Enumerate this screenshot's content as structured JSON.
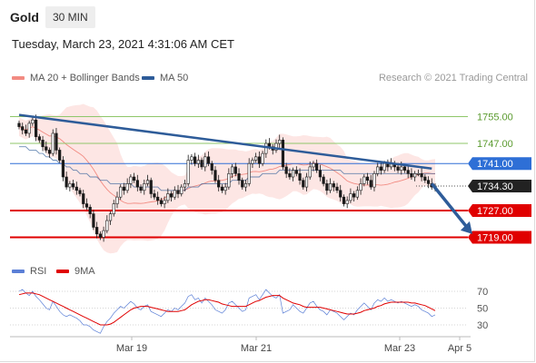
{
  "header": {
    "symbol": "Gold",
    "timeframe": "30 MIN"
  },
  "datetime": "Tuesday, March 23, 2021 4:31:06 AM CET",
  "legend": {
    "items": [
      {
        "label": "MA 20 + Bollinger Bands",
        "color": "#f28b82"
      },
      {
        "label": "MA 50",
        "color": "#2e5c99"
      }
    ],
    "credit": "Research © 2021 Trading Central"
  },
  "rsi_legend": {
    "items": [
      {
        "label": "RSI",
        "color": "#5b7fd6"
      },
      {
        "label": "9MA",
        "color": "#e00000"
      }
    ]
  },
  "colors": {
    "resistance": "#8fc76a",
    "support": "#e00000",
    "pivot": "#2e6fd6",
    "arrow": "#2e5c99",
    "candle": "#1a1a1a"
  },
  "chart_data": [
    {
      "type": "candlestick",
      "x_ticks": [
        "Mar 19",
        "Mar 21",
        "Mar 23",
        "Apr 5"
      ],
      "ylim": [
        1714,
        1760
      ],
      "levels": [
        {
          "label": "1755.00",
          "value": 1755,
          "kind": "resistance"
        },
        {
          "label": "1747.00",
          "value": 1747,
          "kind": "resistance"
        },
        {
          "label": "1741.00",
          "value": 1741,
          "kind": "pivot"
        },
        {
          "label": "1734.30",
          "value": 1734.3,
          "kind": "last"
        },
        {
          "label": "1727.00",
          "value": 1727,
          "kind": "support"
        },
        {
          "label": "1719.00",
          "value": 1719,
          "kind": "support"
        }
      ],
      "closes": [
        1752,
        1751,
        1750,
        1753,
        1754,
        1749,
        1748,
        1746,
        1745,
        1744,
        1750,
        1745,
        1742,
        1737,
        1734,
        1735,
        1734,
        1733,
        1732,
        1729,
        1728,
        1726,
        1722,
        1720,
        1719,
        1721,
        1724,
        1726,
        1729,
        1731,
        1734,
        1733,
        1735,
        1737,
        1736,
        1734,
        1733,
        1735,
        1736,
        1732,
        1731,
        1730,
        1729,
        1730,
        1732,
        1731,
        1733,
        1732,
        1734,
        1735,
        1742,
        1743,
        1741,
        1742,
        1740,
        1743,
        1741,
        1739,
        1736,
        1734,
        1733,
        1734,
        1738,
        1740,
        1738,
        1736,
        1734,
        1735,
        1741,
        1742,
        1743,
        1741,
        1744,
        1747,
        1746,
        1745,
        1747,
        1748,
        1740,
        1738,
        1737,
        1739,
        1738,
        1736,
        1734,
        1737,
        1740,
        1741,
        1739,
        1737,
        1735,
        1733,
        1735,
        1734,
        1733,
        1731,
        1729,
        1730,
        1732,
        1731,
        1733,
        1735,
        1737,
        1736,
        1734,
        1738,
        1740,
        1739,
        1741,
        1740,
        1741,
        1740,
        1739,
        1740,
        1739,
        1738,
        1737,
        1738,
        1738,
        1737,
        1736,
        1735,
        1734,
        1734.3
      ],
      "ma50": [
        1746,
        1746,
        1746,
        1745,
        1745,
        1745,
        1744,
        1744,
        1743,
        1743,
        1742,
        1742,
        1741,
        1741,
        1740,
        1740,
        1739,
        1739,
        1738,
        1738,
        1738,
        1737,
        1737,
        1737,
        1736,
        1736,
        1736,
        1735,
        1735,
        1735,
        1735,
        1735,
        1735,
        1735,
        1734,
        1734,
        1734,
        1734,
        1734,
        1734,
        1734,
        1734,
        1733,
        1733,
        1733,
        1733,
        1733,
        1733,
        1733,
        1733,
        1734,
        1734,
        1734,
        1734,
        1735,
        1735,
        1735,
        1735,
        1735,
        1735,
        1735,
        1735,
        1735,
        1736,
        1736,
        1736,
        1736,
        1736,
        1737,
        1737,
        1737,
        1737,
        1738,
        1738,
        1738,
        1738,
        1738,
        1739,
        1739,
        1739,
        1739,
        1739,
        1739,
        1739,
        1739,
        1739,
        1739,
        1739,
        1739,
        1739,
        1739,
        1739,
        1739,
        1739,
        1739,
        1739,
        1738,
        1738,
        1738,
        1738,
        1738,
        1738,
        1738,
        1738,
        1738,
        1738,
        1738,
        1738,
        1738,
        1738,
        1738,
        1738,
        1738,
        1738,
        1738,
        1738,
        1738,
        1738,
        1738,
        1738,
        1738,
        1738,
        1738,
        1738
      ],
      "trendline": [
        [
          0,
          1755.5
        ],
        [
          122,
          1739.5
        ]
      ],
      "projection": [
        [
          122,
          1735
        ],
        [
          134,
          1720
        ]
      ]
    },
    {
      "type": "line",
      "series": [
        {
          "name": "RSI",
          "values": [
            70,
            72,
            68,
            65,
            70,
            64,
            60,
            55,
            50,
            48,
            58,
            52,
            46,
            42,
            40,
            42,
            40,
            38,
            35,
            30,
            30,
            28,
            24,
            22,
            20,
            28,
            34,
            38,
            44,
            48,
            52,
            50,
            54,
            58,
            55,
            50,
            48,
            52,
            54,
            46,
            44,
            42,
            40,
            44,
            48,
            46,
            50,
            48,
            52,
            56,
            64,
            66,
            60,
            62,
            56,
            62,
            58,
            54,
            48,
            46,
            44,
            48,
            56,
            58,
            54,
            50,
            46,
            48,
            62,
            64,
            66,
            60,
            66,
            72,
            68,
            64,
            62,
            66,
            44,
            46,
            48,
            54,
            50,
            46,
            44,
            50,
            56,
            58,
            52,
            48,
            46,
            42,
            48,
            46,
            44,
            40,
            36,
            40,
            44,
            42,
            48,
            52,
            56,
            52,
            48,
            56,
            60,
            58,
            62,
            58,
            60,
            58,
            56,
            58,
            56,
            54,
            52,
            54,
            52,
            48,
            46,
            44,
            40,
            42
          ]
        },
        {
          "name": "9MA",
          "values": [
            66,
            67,
            68,
            68,
            68,
            67,
            66,
            64,
            62,
            60,
            58,
            56,
            54,
            52,
            50,
            48,
            46,
            44,
            42,
            40,
            38,
            36,
            34,
            32,
            30,
            30,
            30,
            31,
            33,
            36,
            39,
            42,
            45,
            48,
            50,
            51,
            52,
            52,
            52,
            51,
            50,
            49,
            48,
            47,
            46,
            46,
            46,
            46,
            47,
            48,
            51,
            54,
            56,
            58,
            59,
            60,
            60,
            59,
            58,
            57,
            55,
            54,
            53,
            52,
            52,
            52,
            52,
            52,
            54,
            56,
            58,
            59,
            61,
            63,
            64,
            65,
            65,
            65,
            62,
            60,
            58,
            56,
            55,
            54,
            52,
            51,
            51,
            51,
            51,
            51,
            50,
            49,
            48,
            47,
            46,
            45,
            44,
            43,
            43,
            43,
            44,
            45,
            47,
            48,
            49,
            50,
            52,
            53,
            55,
            56,
            57,
            57,
            57,
            57,
            57,
            57,
            56,
            56,
            55,
            54,
            53,
            51,
            49,
            47
          ]
        }
      ],
      "y_ticks": [
        "70",
        "50",
        "30"
      ],
      "ylim": [
        15,
        85
      ]
    }
  ]
}
